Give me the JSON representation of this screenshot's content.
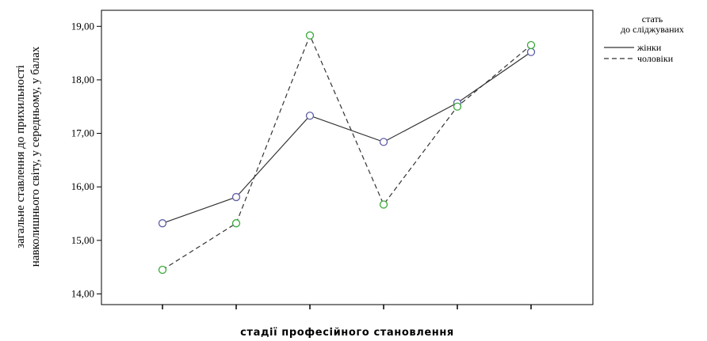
{
  "chart_data": {
    "type": "line",
    "xlabel": "стадії професійного становлення",
    "ylabel": [
      "загальне ставлення до прихильності",
      "навколишнього світу, у середньому, у балах"
    ],
    "y_ticks": [
      "14,00",
      "15,00",
      "16,00",
      "17,00",
      "18,00",
      "19,00"
    ],
    "ylim": [
      13.8,
      19.3
    ],
    "x": [
      1,
      2,
      3,
      4,
      5,
      6
    ],
    "legend": {
      "title": [
        "стать",
        "до сліджуваних"
      ],
      "placement": "right"
    },
    "series": [
      {
        "name": "жінки",
        "style": "solid",
        "color": "#333333",
        "marker_color": "#5e5ea8",
        "values": [
          15.32,
          15.81,
          17.33,
          16.84,
          17.57,
          18.52
        ]
      },
      {
        "name": "чоловіки",
        "style": "dashed",
        "color": "#333333",
        "marker_color": "#3aa83a",
        "values": [
          14.45,
          15.32,
          18.83,
          15.67,
          17.5,
          18.65
        ]
      }
    ],
    "grid": false
  }
}
